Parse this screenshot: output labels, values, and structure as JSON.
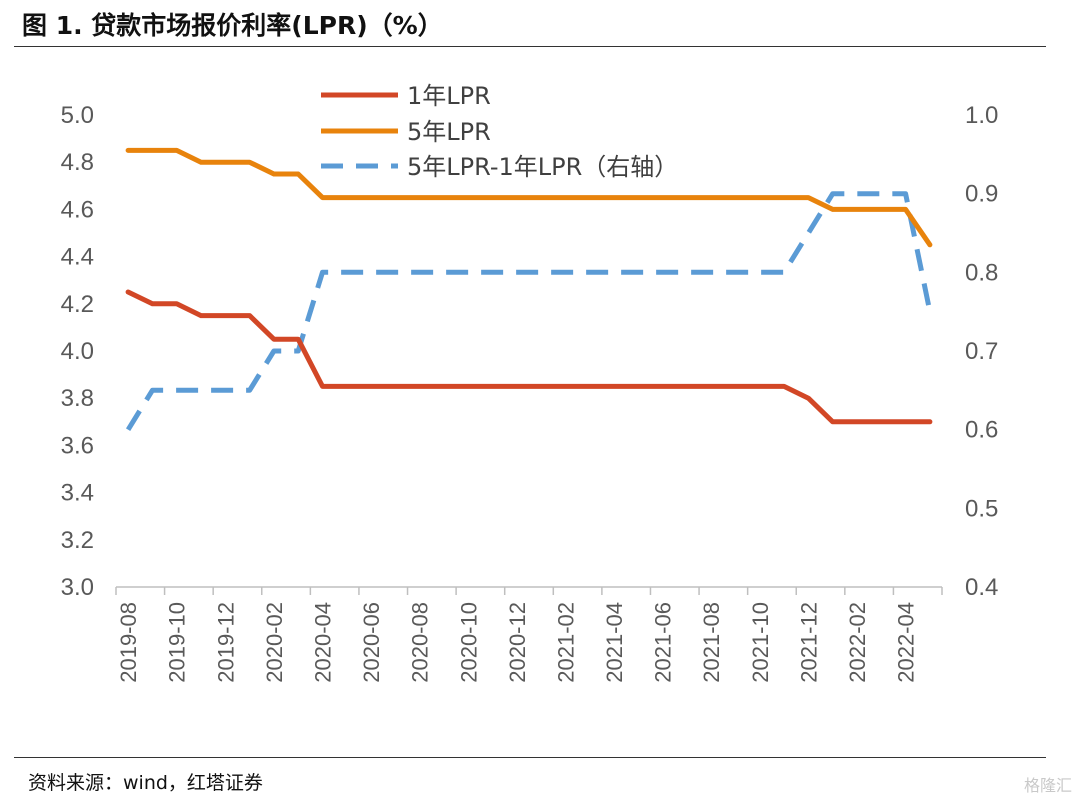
{
  "header": {
    "title": "图 1. 贷款市场报价利率(LPR)（%）"
  },
  "footer": {
    "source": "资料来源：wind，红塔证券",
    "watermark": "格隆汇"
  },
  "colors": {
    "lpr1": "#D24726",
    "lpr5": "#E8830C",
    "spread": "#5B9BD5",
    "axis": "#BFBFBF",
    "text": "#595959"
  },
  "chart_data": {
    "type": "line",
    "title": "",
    "x": [
      "2019-08",
      "2019-09",
      "2019-10",
      "2019-11",
      "2019-12",
      "2020-01",
      "2020-02",
      "2020-03",
      "2020-04",
      "2020-05",
      "2020-06",
      "2020-07",
      "2020-08",
      "2020-09",
      "2020-10",
      "2020-11",
      "2020-12",
      "2021-01",
      "2021-02",
      "2021-03",
      "2021-04",
      "2021-05",
      "2021-06",
      "2021-07",
      "2021-08",
      "2021-09",
      "2021-10",
      "2021-11",
      "2021-12",
      "2022-01",
      "2022-02",
      "2022-03",
      "2022-04",
      "2022-05"
    ],
    "xtick_labels": [
      "2019-08",
      "2019-10",
      "2019-12",
      "2020-02",
      "2020-04",
      "2020-06",
      "2020-08",
      "2020-10",
      "2020-12",
      "2021-02",
      "2021-04",
      "2021-06",
      "2021-08",
      "2021-10",
      "2021-12",
      "2022-02",
      "2022-04"
    ],
    "series": [
      {
        "name": "1年LPR",
        "axis": "left",
        "values": [
          4.25,
          4.2,
          4.2,
          4.15,
          4.15,
          4.15,
          4.05,
          4.05,
          3.85,
          3.85,
          3.85,
          3.85,
          3.85,
          3.85,
          3.85,
          3.85,
          3.85,
          3.85,
          3.85,
          3.85,
          3.85,
          3.85,
          3.85,
          3.85,
          3.85,
          3.85,
          3.85,
          3.85,
          3.8,
          3.7,
          3.7,
          3.7,
          3.7,
          3.7
        ]
      },
      {
        "name": "5年LPR",
        "axis": "left",
        "values": [
          4.85,
          4.85,
          4.85,
          4.8,
          4.8,
          4.8,
          4.75,
          4.75,
          4.65,
          4.65,
          4.65,
          4.65,
          4.65,
          4.65,
          4.65,
          4.65,
          4.65,
          4.65,
          4.65,
          4.65,
          4.65,
          4.65,
          4.65,
          4.65,
          4.65,
          4.65,
          4.65,
          4.65,
          4.65,
          4.6,
          4.6,
          4.6,
          4.6,
          4.45
        ]
      },
      {
        "name": "5年LPR-1年LPR（右轴）",
        "axis": "right",
        "values": [
          0.6,
          0.65,
          0.65,
          0.65,
          0.65,
          0.65,
          0.7,
          0.7,
          0.8,
          0.8,
          0.8,
          0.8,
          0.8,
          0.8,
          0.8,
          0.8,
          0.8,
          0.8,
          0.8,
          0.8,
          0.8,
          0.8,
          0.8,
          0.8,
          0.8,
          0.8,
          0.8,
          0.8,
          0.85,
          0.9,
          0.9,
          0.9,
          0.9,
          0.75
        ]
      }
    ],
    "ylim_left": [
      3.0,
      5.0
    ],
    "yticks_left": [
      "3.0",
      "3.2",
      "3.4",
      "3.6",
      "3.8",
      "4.0",
      "4.2",
      "4.4",
      "4.6",
      "4.8",
      "5.0"
    ],
    "ylim_right": [
      0.4,
      1.0
    ],
    "yticks_right": [
      "0.4",
      "0.5",
      "0.6",
      "0.7",
      "0.8",
      "0.9",
      "1.0"
    ],
    "grid": false,
    "legend": "top-center"
  }
}
